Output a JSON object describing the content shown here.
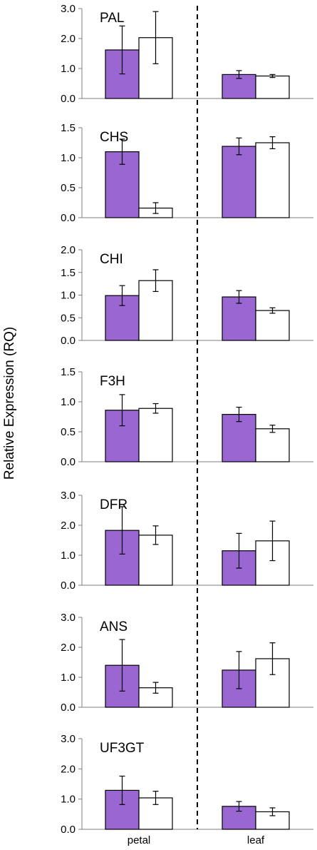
{
  "figure": {
    "ylabel": "Relative Expression (RQ)",
    "categories": [
      "petal",
      "leaf"
    ]
  },
  "colors": {
    "series_filled": "#9a66d2",
    "series_open": "#ffffff",
    "outline": "#000000",
    "axis": "#7f7f7f"
  },
  "chart_data": [
    {
      "type": "bar",
      "title": "PAL",
      "categories": [
        "petal",
        "leaf"
      ],
      "ylim": [
        0,
        3.0
      ],
      "yticks": [
        "0.0",
        "1.0",
        "2.0",
        "3.0"
      ],
      "ytick_values": [
        0,
        1,
        2,
        3
      ],
      "series": [
        {
          "values": [
            1.62,
            0.8
          ],
          "errors": [
            0.8,
            0.13
          ]
        },
        {
          "values": [
            2.03,
            0.75
          ],
          "errors": [
            0.87,
            0.05
          ]
        }
      ]
    },
    {
      "type": "bar",
      "title": "CHS",
      "categories": [
        "petal",
        "leaf"
      ],
      "ylim": [
        0,
        1.5
      ],
      "yticks": [
        "0.0",
        "0.5",
        "1.0",
        "1.5"
      ],
      "ytick_values": [
        0,
        0.5,
        1.0,
        1.5
      ],
      "series": [
        {
          "values": [
            1.1,
            1.19
          ],
          "errors": [
            0.21,
            0.14
          ]
        },
        {
          "values": [
            0.16,
            1.25
          ],
          "errors": [
            0.09,
            0.1
          ]
        }
      ]
    },
    {
      "type": "bar",
      "title": "CHI",
      "categories": [
        "petal",
        "leaf"
      ],
      "ylim": [
        0,
        2.0
      ],
      "yticks": [
        "0.0",
        "0.5",
        "1.0",
        "1.5",
        "2.0"
      ],
      "ytick_values": [
        0,
        0.5,
        1.0,
        1.5,
        2.0
      ],
      "series": [
        {
          "values": [
            0.99,
            0.96
          ],
          "errors": [
            0.22,
            0.14
          ]
        },
        {
          "values": [
            1.32,
            0.66
          ],
          "errors": [
            0.24,
            0.06
          ]
        }
      ]
    },
    {
      "type": "bar",
      "title": "F3H",
      "categories": [
        "petal",
        "leaf"
      ],
      "ylim": [
        0,
        1.5
      ],
      "yticks": [
        "0.0",
        "0.5",
        "1.0",
        "1.5"
      ],
      "ytick_values": [
        0,
        0.5,
        1.0,
        1.5
      ],
      "series": [
        {
          "values": [
            0.86,
            0.79
          ],
          "errors": [
            0.26,
            0.12
          ]
        },
        {
          "values": [
            0.89,
            0.55
          ],
          "errors": [
            0.08,
            0.06
          ]
        }
      ]
    },
    {
      "type": "bar",
      "title": "DFR",
      "categories": [
        "petal",
        "leaf"
      ],
      "ylim": [
        0,
        3.0
      ],
      "yticks": [
        "0.0",
        "1.0",
        "2.0",
        "3.0"
      ],
      "ytick_values": [
        0,
        1,
        2,
        3
      ],
      "series": [
        {
          "values": [
            1.83,
            1.15
          ],
          "errors": [
            0.79,
            0.58
          ]
        },
        {
          "values": [
            1.67,
            1.48
          ],
          "errors": [
            0.31,
            0.66
          ]
        }
      ]
    },
    {
      "type": "bar",
      "title": "ANS",
      "categories": [
        "petal",
        "leaf"
      ],
      "ylim": [
        0,
        3.0
      ],
      "yticks": [
        "0.0",
        "1.0",
        "2.0",
        "3.0"
      ],
      "ytick_values": [
        0,
        1,
        2,
        3
      ],
      "series": [
        {
          "values": [
            1.4,
            1.24
          ],
          "errors": [
            0.86,
            0.62
          ]
        },
        {
          "values": [
            0.65,
            1.62
          ],
          "errors": [
            0.18,
            0.53
          ]
        }
      ]
    },
    {
      "type": "bar",
      "title": "UF3GT",
      "categories": [
        "petal",
        "leaf"
      ],
      "ylim": [
        0,
        3.0
      ],
      "yticks": [
        "0.0",
        "1.0",
        "2.0",
        "3.0"
      ],
      "ytick_values": [
        0,
        1,
        2,
        3
      ],
      "series": [
        {
          "values": [
            1.29,
            0.76
          ],
          "errors": [
            0.47,
            0.16
          ]
        },
        {
          "values": [
            1.04,
            0.58
          ],
          "errors": [
            0.22,
            0.13
          ]
        }
      ]
    }
  ]
}
